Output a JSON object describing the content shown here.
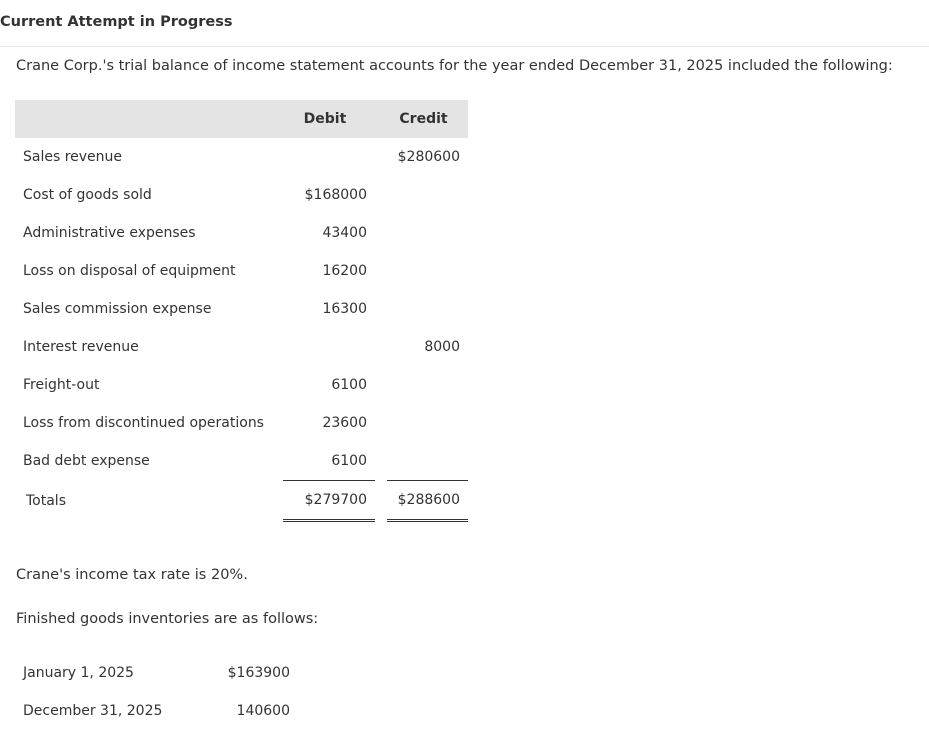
{
  "header": {
    "status": "Current Attempt in Progress"
  },
  "problem": {
    "intro": "Crane Corp.'s trial balance of income statement accounts for the year ended December 31, 2025 included the following:",
    "trial_balance": {
      "headers": {
        "debit": "Debit",
        "credit": "Credit"
      },
      "rows": [
        {
          "label": "Sales revenue",
          "debit": "",
          "credit": "$280600"
        },
        {
          "label": "Cost of goods sold",
          "debit": "$168000",
          "credit": ""
        },
        {
          "label": "Administrative expenses",
          "debit": "43400",
          "credit": ""
        },
        {
          "label": "Loss on disposal of equipment",
          "debit": "16200",
          "credit": ""
        },
        {
          "label": "Sales commission expense",
          "debit": "16300",
          "credit": ""
        },
        {
          "label": "Interest revenue",
          "debit": "",
          "credit": "8000"
        },
        {
          "label": "Freight-out",
          "debit": "6100",
          "credit": ""
        },
        {
          "label": "Loss from discontinued operations",
          "debit": "23600",
          "credit": ""
        },
        {
          "label": "Bad debt expense",
          "debit": "6100",
          "credit": ""
        }
      ],
      "totals": {
        "label": "Totals",
        "debit": "$279700",
        "credit": "$288600"
      }
    },
    "tax_note": "Crane's income tax rate is 20%.",
    "inventory_intro": "Finished goods inventories are as follows:",
    "inventories": [
      {
        "label": "January 1, 2025",
        "value": "$163900"
      },
      {
        "label": "December 31, 2025",
        "value": "140600"
      }
    ]
  }
}
